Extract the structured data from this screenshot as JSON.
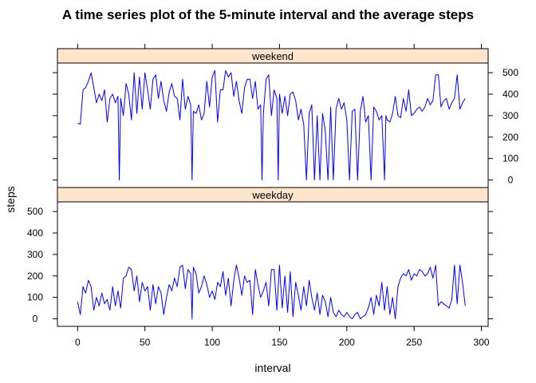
{
  "chart_data": {
    "type": "line",
    "title": "A time series plot of the 5-minute interval and the average steps",
    "xlabel": "interval",
    "ylabel": "steps",
    "xlim": [
      -15,
      305
    ],
    "ylim": [
      -35,
      545
    ],
    "x_ticks": [
      0,
      50,
      100,
      150,
      200,
      250,
      300
    ],
    "y_ticks": [
      0,
      100,
      200,
      300,
      400,
      500
    ],
    "grid": false,
    "legend": "none",
    "colors": {
      "line": "#0000ff",
      "strip": "#ffe5cc",
      "axis": "#000000"
    },
    "panels": [
      {
        "name": "weekend",
        "y_tick_side": "right",
        "x": [
          0,
          2,
          4,
          6,
          8,
          10,
          12,
          14,
          16,
          18,
          20,
          22,
          24,
          26,
          28,
          30,
          31,
          32,
          34,
          36,
          38,
          40,
          42,
          44,
          46,
          48,
          50,
          52,
          54,
          56,
          58,
          60,
          62,
          64,
          66,
          68,
          70,
          72,
          74,
          76,
          78,
          80,
          82,
          84,
          85,
          86,
          88,
          90,
          92,
          94,
          96,
          98,
          100,
          102,
          104,
          106,
          108,
          110,
          112,
          114,
          116,
          118,
          120,
          122,
          124,
          126,
          128,
          130,
          132,
          134,
          136,
          137,
          138,
          140,
          142,
          144,
          146,
          148,
          149,
          150,
          152,
          154,
          156,
          158,
          160,
          162,
          164,
          166,
          168,
          170,
          172,
          174,
          176,
          178,
          180,
          182,
          184,
          186,
          188,
          190,
          192,
          194,
          196,
          198,
          200,
          202,
          204,
          206,
          208,
          210,
          212,
          214,
          216,
          218,
          220,
          222,
          224,
          226,
          228,
          229,
          230,
          232,
          234,
          236,
          238,
          240,
          242,
          244,
          246,
          248,
          250,
          252,
          254,
          256,
          258,
          260,
          262,
          264,
          266,
          268,
          270,
          272,
          274,
          276,
          278,
          280,
          282,
          284,
          286,
          288
        ],
        "values": [
          265,
          260,
          420,
          430,
          460,
          500,
          430,
          360,
          400,
          370,
          420,
          270,
          380,
          400,
          360,
          390,
          0,
          380,
          300,
          450,
          400,
          280,
          500,
          310,
          480,
          330,
          500,
          420,
          330,
          470,
          490,
          380,
          460,
          370,
          320,
          410,
          450,
          390,
          380,
          280,
          470,
          330,
          390,
          350,
          0,
          320,
          310,
          350,
          280,
          310,
          460,
          340,
          480,
          510,
          270,
          420,
          420,
          510,
          480,
          500,
          390,
          460,
          370,
          310,
          430,
          470,
          470,
          380,
          460,
          330,
          350,
          0,
          310,
          470,
          490,
          300,
          420,
          380,
          0,
          400,
          310,
          390,
          300,
          400,
          410,
          370,
          280,
          330,
          260,
          0,
          310,
          350,
          0,
          300,
          0,
          310,
          230,
          0,
          340,
          0,
          330,
          380,
          330,
          360,
          280,
          0,
          320,
          330,
          0,
          320,
          390,
          270,
          300,
          0,
          340,
          320,
          280,
          300,
          0,
          300,
          280,
          270,
          310,
          390,
          300,
          290,
          380,
          320,
          420,
          300,
          310,
          330,
          340,
          320,
          340,
          380,
          350,
          370,
          490,
          490,
          340,
          370,
          380,
          330,
          360,
          380,
          490,
          330,
          360,
          380
        ]
      },
      {
        "name": "weekday",
        "y_tick_side": "left",
        "x": [
          0,
          2,
          4,
          6,
          8,
          10,
          12,
          14,
          16,
          18,
          20,
          22,
          24,
          26,
          28,
          30,
          32,
          34,
          36,
          38,
          40,
          42,
          44,
          46,
          48,
          50,
          52,
          54,
          56,
          58,
          60,
          62,
          64,
          66,
          68,
          70,
          72,
          74,
          76,
          78,
          80,
          82,
          84,
          85,
          86,
          88,
          90,
          92,
          94,
          96,
          98,
          100,
          102,
          104,
          106,
          108,
          110,
          112,
          114,
          116,
          118,
          120,
          122,
          124,
          126,
          128,
          130,
          132,
          134,
          136,
          138,
          140,
          142,
          144,
          146,
          148,
          150,
          152,
          154,
          156,
          158,
          160,
          162,
          164,
          166,
          168,
          170,
          172,
          174,
          176,
          178,
          180,
          182,
          184,
          186,
          188,
          190,
          192,
          194,
          196,
          198,
          200,
          202,
          204,
          206,
          208,
          210,
          212,
          214,
          216,
          218,
          220,
          222,
          224,
          226,
          228,
          230,
          232,
          234,
          236,
          238,
          240,
          242,
          244,
          246,
          248,
          250,
          252,
          254,
          256,
          258,
          260,
          262,
          264,
          266,
          268,
          270,
          272,
          274,
          276,
          278,
          280,
          282,
          284,
          286,
          288
        ],
        "values": [
          80,
          20,
          150,
          120,
          180,
          150,
          40,
          100,
          60,
          120,
          70,
          90,
          40,
          150,
          60,
          130,
          50,
          190,
          200,
          240,
          230,
          130,
          200,
          80,
          170,
          130,
          150,
          40,
          160,
          70,
          150,
          120,
          20,
          100,
          160,
          130,
          190,
          150,
          240,
          250,
          140,
          230,
          210,
          0,
          240,
          210,
          120,
          150,
          200,
          160,
          100,
          130,
          90,
          170,
          150,
          220,
          110,
          190,
          60,
          180,
          250,
          190,
          110,
          200,
          170,
          180,
          20,
          230,
          160,
          100,
          130,
          170,
          60,
          230,
          230,
          40,
          250,
          50,
          200,
          30,
          220,
          10,
          170,
          110,
          40,
          150,
          60,
          180,
          100,
          40,
          120,
          20,
          110,
          80,
          10,
          100,
          30,
          10,
          40,
          20,
          10,
          30,
          10,
          0,
          20,
          30,
          0,
          10,
          20,
          50,
          100,
          20,
          110,
          60,
          170,
          40,
          150,
          20,
          100,
          0,
          150,
          190,
          210,
          200,
          230,
          180,
          210,
          200,
          230,
          220,
          200,
          210,
          240,
          190,
          250,
          60,
          80,
          70,
          60,
          50,
          90,
          250,
          70,
          250,
          170,
          60
        ]
      }
    ]
  }
}
